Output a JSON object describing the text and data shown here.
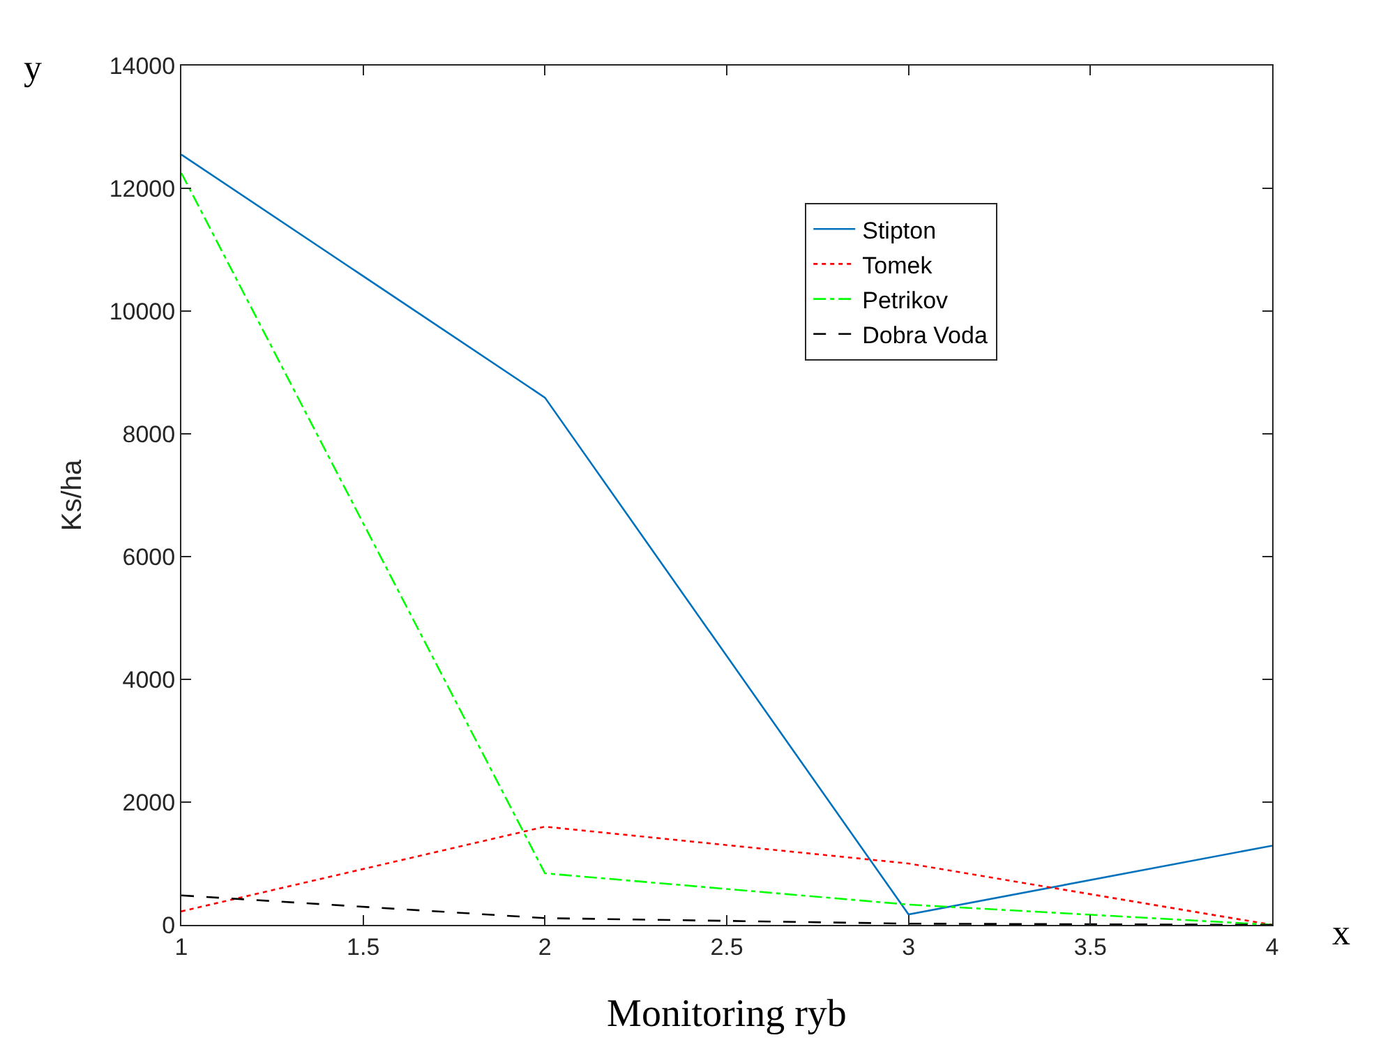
{
  "chart_data": {
    "type": "line",
    "xlabel": "Monitoring ryb",
    "ylabel": "Ks/ha",
    "x": [
      1,
      2,
      3,
      4
    ],
    "series": [
      {
        "name": "Stipton",
        "color": "#0072bd",
        "line_style": "solid",
        "values": [
          12550,
          8590,
          170,
          1290
        ]
      },
      {
        "name": "Tomek",
        "color": "#ff0000",
        "line_style": "dotted",
        "values": [
          220,
          1600,
          1000,
          0
        ]
      },
      {
        "name": "Petrikov",
        "color": "#00ff00",
        "line_style": "dashdot",
        "values": [
          12250,
          840,
          330,
          0
        ]
      },
      {
        "name": "Dobra Voda",
        "color": "#000000",
        "line_style": "dashed",
        "values": [
          480,
          110,
          20,
          0
        ]
      }
    ],
    "xlim": [
      1,
      4
    ],
    "xticks": [
      1,
      1.5,
      2,
      2.5,
      3,
      3.5,
      4
    ],
    "ylim": [
      0,
      14000
    ],
    "yticks": [
      0,
      2000,
      4000,
      6000,
      8000,
      10000,
      12000,
      14000
    ],
    "grid": false,
    "legend": "top right",
    "marker": "none",
    "annotations": [
      "y",
      "x"
    ]
  }
}
